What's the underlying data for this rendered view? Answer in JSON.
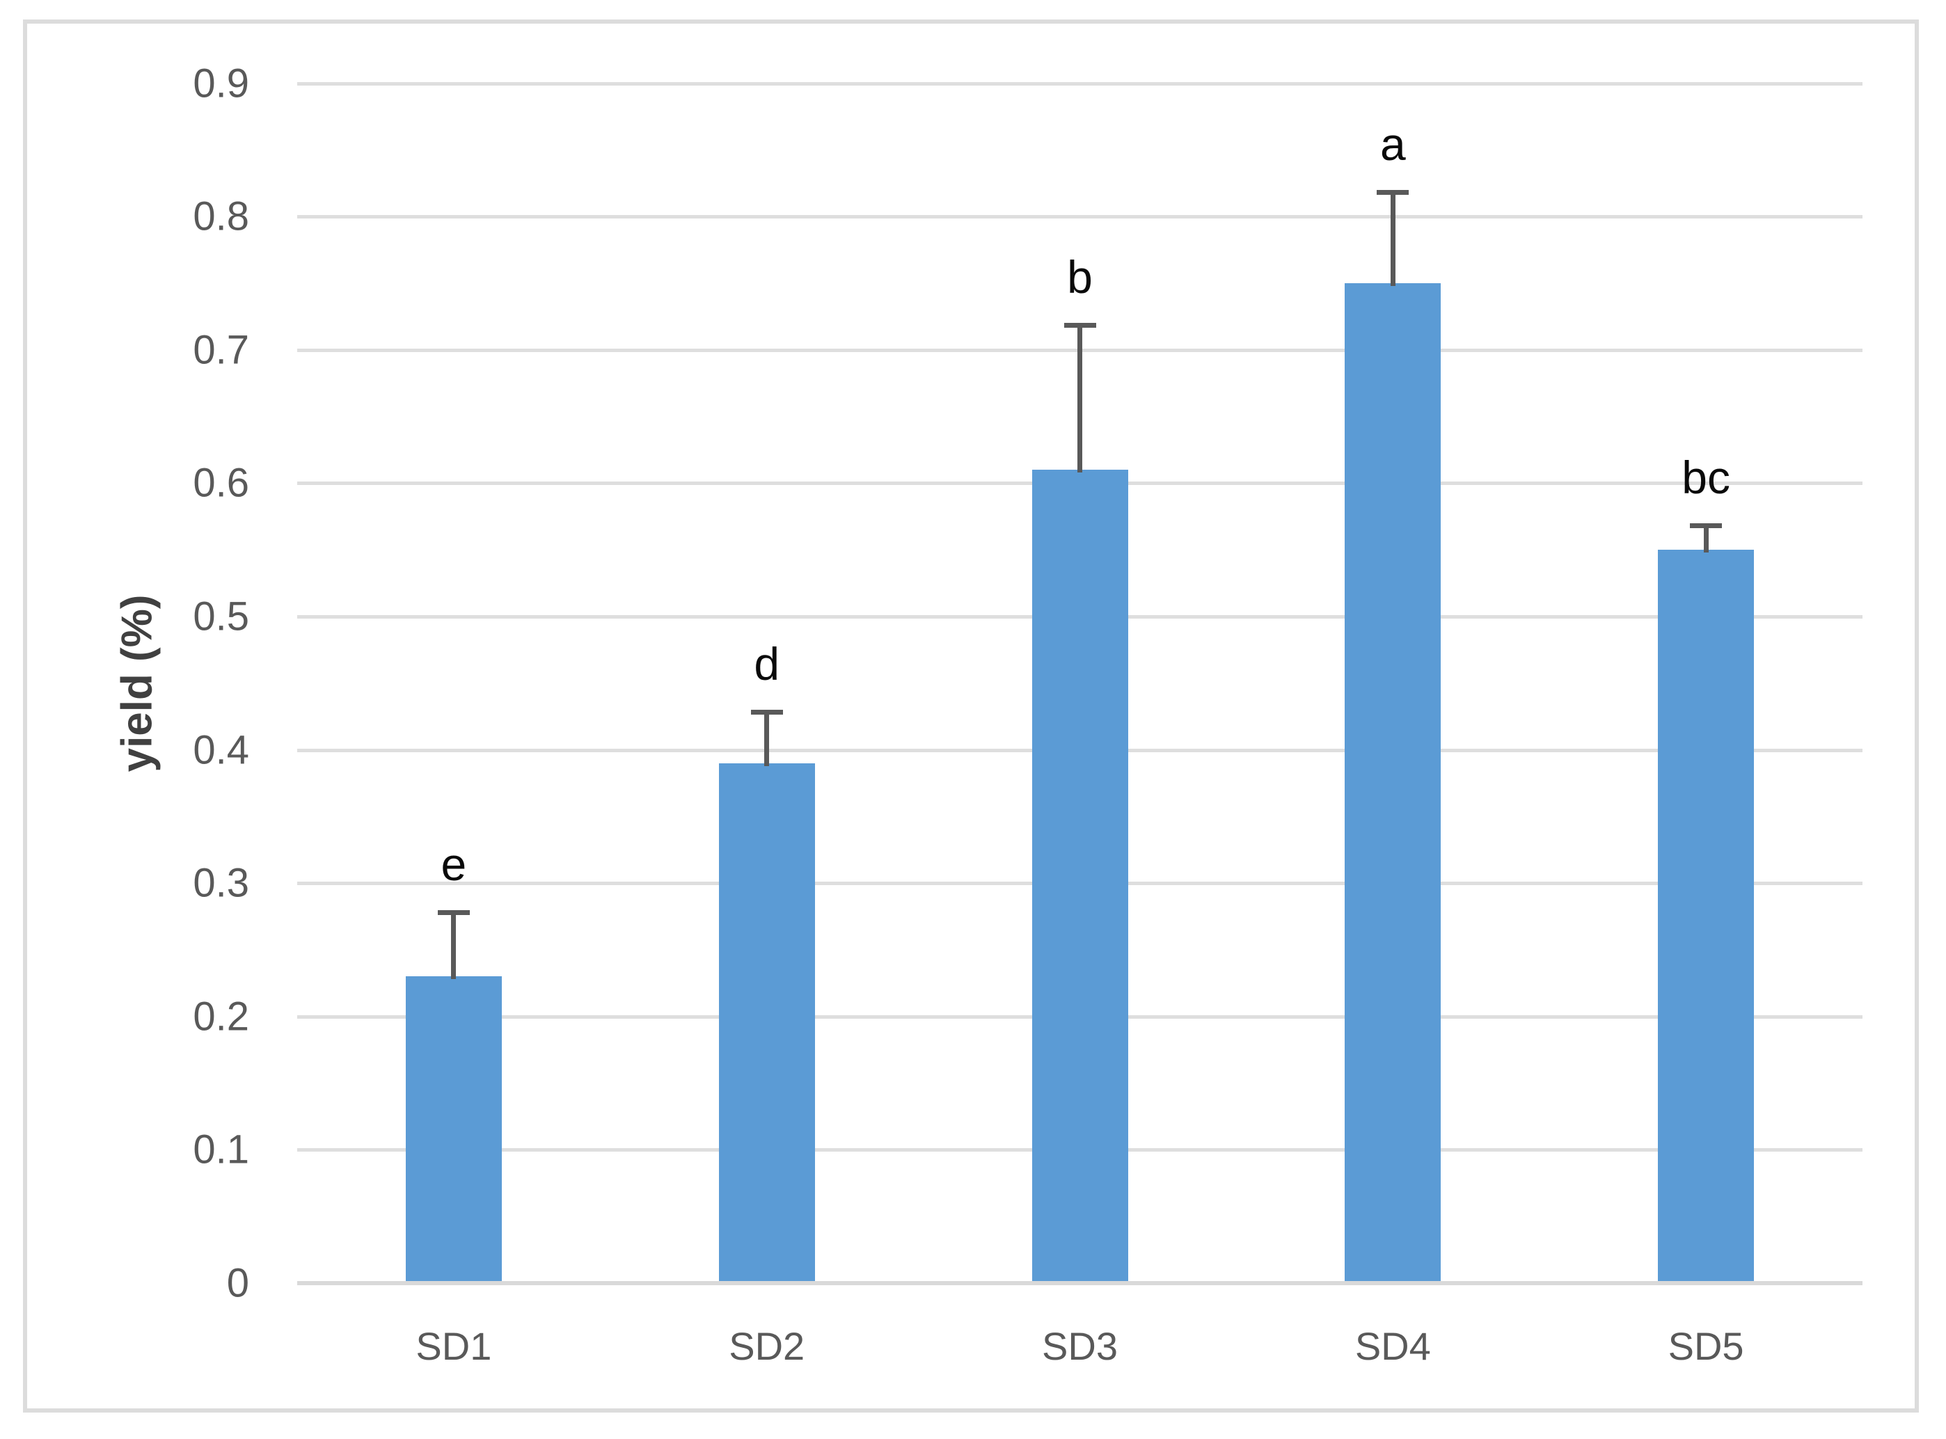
{
  "chart_data": {
    "type": "bar",
    "title": "",
    "xlabel": "",
    "ylabel": "yield (%)",
    "categories": [
      "SD1",
      "SD2",
      "SD3",
      "SD4",
      "SD5"
    ],
    "values": [
      0.23,
      0.39,
      0.61,
      0.75,
      0.55
    ],
    "error_plus": [
      0.05,
      0.04,
      0.11,
      0.07,
      0.02
    ],
    "error_bar_tops": [
      0.28,
      0.43,
      0.72,
      0.82,
      0.57
    ],
    "significance_letters": [
      "e",
      "d",
      "b",
      "a",
      "bc"
    ],
    "y_ticks": [
      "0",
      "0.1",
      "0.2",
      "0.3",
      "0.4",
      "0.5",
      "0.6",
      "0.7",
      "0.8",
      "0.9"
    ],
    "ylim": [
      0,
      0.9
    ],
    "grid": "horizontal-only",
    "legend": "none",
    "colors": {
      "bar_fill": "#5B9BD5",
      "error_bar": "#595959",
      "gridline": "#DEDEDE",
      "axis_line": "#D9D9D9",
      "tick_label": "#595959",
      "axis_title": "#404040",
      "annotation": "#0A0A0A",
      "figure_border": "#DCDCDC",
      "background": "#FFFFFF"
    }
  }
}
